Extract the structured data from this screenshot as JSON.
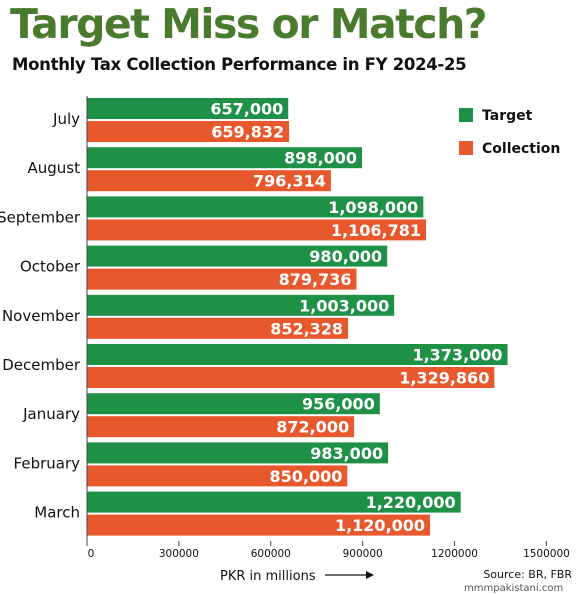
{
  "header": {
    "title": "Target Miss or Match?",
    "subtitle": "Monthly Tax Collection Performance in FY 2024-25"
  },
  "footer": {
    "source": "Source: BR, FBR",
    "watermark": "mmmpakistani.com"
  },
  "colors": {
    "target": "#1e9146",
    "collection": "#e8582d",
    "title": "#4a7a2e"
  },
  "chart_data": {
    "type": "bar",
    "orientation": "horizontal",
    "title": "Target Miss or Match?",
    "subtitle": "Monthly Tax Collection Performance in FY 2024-25",
    "xlabel": "PKR in millions",
    "ylabel": "",
    "xlim": [
      0,
      1500000
    ],
    "x_ticks": [
      0,
      300000,
      600000,
      900000,
      1200000,
      1500000
    ],
    "x_tick_labels": [
      "0",
      "300000",
      "600000",
      "900000",
      "1200000",
      "1500000"
    ],
    "grid": false,
    "legend_position": "top-right",
    "categories": [
      "July",
      "August",
      "September",
      "October",
      "November",
      "December",
      "January",
      "February",
      "March"
    ],
    "series": [
      {
        "name": "Target",
        "color": "#1e9146",
        "values": [
          657000,
          898000,
          1098000,
          980000,
          1003000,
          1373000,
          956000,
          983000,
          1220000
        ],
        "labels": [
          "657,000",
          "898,000",
          "1,098,000",
          "980,000",
          "1,003,000",
          "1,373,000",
          "956,000",
          "983,000",
          "1,220,000"
        ]
      },
      {
        "name": "Collection",
        "color": "#e8582d",
        "values": [
          659832,
          796314,
          1106781,
          879736,
          852328,
          1329860,
          872000,
          850000,
          1120000
        ],
        "labels": [
          "659,832",
          "796,314",
          "1,106,781",
          "879,736",
          "852,328",
          "1,329,860",
          "872,000",
          "850,000",
          "1,120,000"
        ]
      }
    ]
  }
}
